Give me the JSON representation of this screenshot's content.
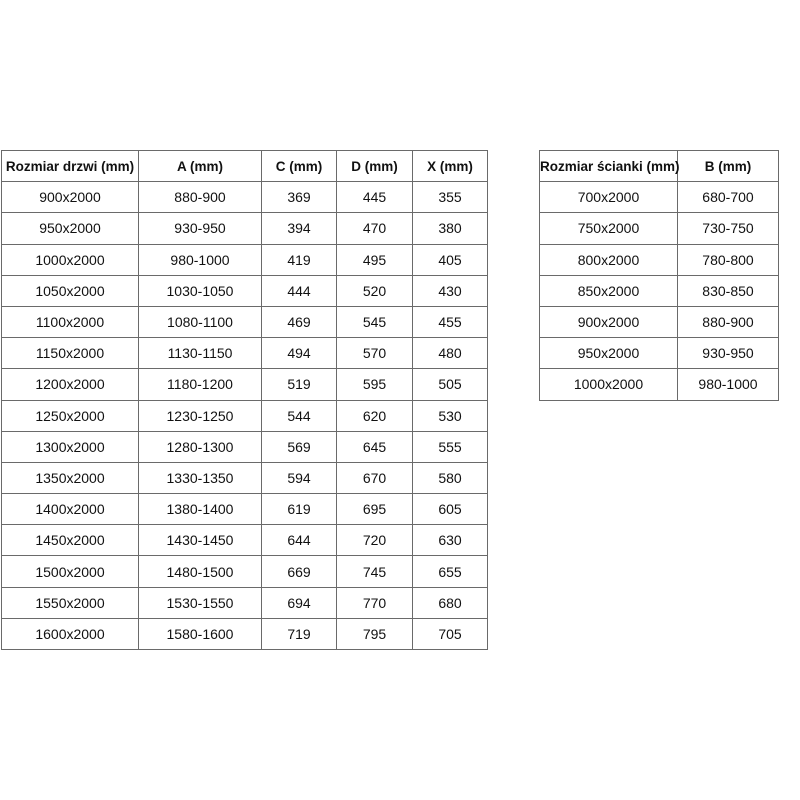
{
  "doors_table": {
    "headers": [
      "Rozmiar drzwi (mm)",
      "A (mm)",
      "C (mm)",
      "D (mm)",
      "X (mm)"
    ],
    "rows": [
      [
        "900x2000",
        "880-900",
        "369",
        "445",
        "355"
      ],
      [
        "950x2000",
        "930-950",
        "394",
        "470",
        "380"
      ],
      [
        "1000x2000",
        "980-1000",
        "419",
        "495",
        "405"
      ],
      [
        "1050x2000",
        "1030-1050",
        "444",
        "520",
        "430"
      ],
      [
        "1100x2000",
        "1080-1100",
        "469",
        "545",
        "455"
      ],
      [
        "1150x2000",
        "1130-1150",
        "494",
        "570",
        "480"
      ],
      [
        "1200x2000",
        "1180-1200",
        "519",
        "595",
        "505"
      ],
      [
        "1250x2000",
        "1230-1250",
        "544",
        "620",
        "530"
      ],
      [
        "1300x2000",
        "1280-1300",
        "569",
        "645",
        "555"
      ],
      [
        "1350x2000",
        "1330-1350",
        "594",
        "670",
        "580"
      ],
      [
        "1400x2000",
        "1380-1400",
        "619",
        "695",
        "605"
      ],
      [
        "1450x2000",
        "1430-1450",
        "644",
        "720",
        "630"
      ],
      [
        "1500x2000",
        "1480-1500",
        "669",
        "745",
        "655"
      ],
      [
        "1550x2000",
        "1530-1550",
        "694",
        "770",
        "680"
      ],
      [
        "1600x2000",
        "1580-1600",
        "719",
        "795",
        "705"
      ]
    ]
  },
  "wall_table": {
    "headers": [
      "Rozmiar ścianki (mm)",
      "B (mm)"
    ],
    "rows": [
      [
        "700x2000",
        "680-700"
      ],
      [
        "750x2000",
        "730-750"
      ],
      [
        "800x2000",
        "780-800"
      ],
      [
        "850x2000",
        "830-850"
      ],
      [
        "900x2000",
        "880-900"
      ],
      [
        "950x2000",
        "930-950"
      ],
      [
        "1000x2000",
        "980-1000"
      ]
    ]
  }
}
